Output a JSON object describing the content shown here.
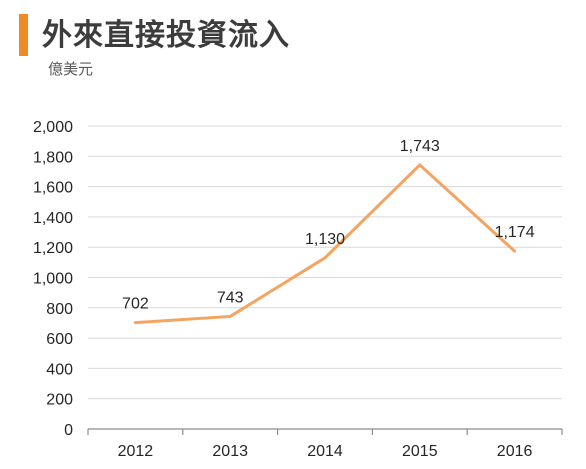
{
  "header": {
    "title": "外來直接投資流入",
    "subtitle": "億美元",
    "accent_color": "#f08a24"
  },
  "chart_data": {
    "type": "line",
    "title": "外來直接投資流入",
    "ylabel": "億美元",
    "xlabel": "",
    "categories": [
      "2012",
      "2013",
      "2014",
      "2015",
      "2016"
    ],
    "series": [
      {
        "values": [
          702,
          743,
          1130,
          1743,
          1174
        ],
        "color": "#f4a460"
      }
    ],
    "data_labels": [
      "702",
      "743",
      "1,130",
      "1,743",
      "1,174"
    ],
    "ylim": [
      0,
      2000
    ],
    "yticks": [
      0,
      200,
      400,
      600,
      800,
      1000,
      1200,
      1400,
      1600,
      1800,
      2000
    ],
    "ytick_labels": [
      "0",
      "200",
      "400",
      "600",
      "800",
      "1,000",
      "1,200",
      "1,400",
      "1,600",
      "1,800",
      "2,000"
    ],
    "grid": true,
    "legend": "none"
  }
}
